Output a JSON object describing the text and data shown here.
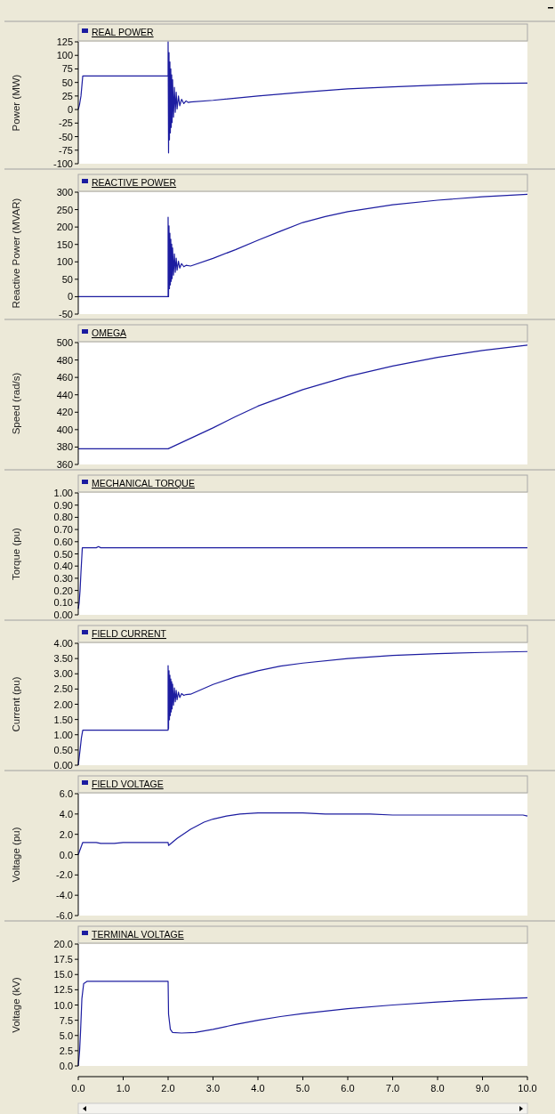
{
  "chart_data": [
    {
      "type": "line",
      "ylabel": "Power (MW)",
      "legend": "top",
      "tick_labels": "y",
      "xlim": [
        0,
        10
      ],
      "ylim": [
        -100,
        125
      ],
      "yticks": [
        -100,
        -75,
        -50,
        -25,
        0,
        25,
        50,
        75,
        100,
        125
      ],
      "series": [
        {
          "name": "REAL POWER",
          "color": "#1c1ca0",
          "x": [
            0,
            0.03,
            0.06,
            0.1,
            2.0,
            2.0,
            2.01,
            2.02,
            2.03,
            2.04,
            2.05,
            2.06,
            2.07,
            2.08,
            2.09,
            2.1,
            2.12,
            2.14,
            2.16,
            2.18,
            2.2,
            2.23,
            2.26,
            2.3,
            2.35,
            2.4,
            2.45,
            2.5,
            3,
            4,
            5,
            6,
            7,
            8,
            9,
            10
          ],
          "values": [
            0,
            10,
            25,
            62,
            62,
            125,
            -80,
            105,
            -56,
            88,
            -43,
            75,
            -33,
            64,
            -24,
            55,
            -14,
            41,
            -5,
            32,
            1,
            25,
            7,
            19,
            11,
            16,
            13,
            14,
            17,
            25,
            32,
            38,
            42,
            45,
            48,
            49
          ]
        }
      ]
    },
    {
      "type": "line",
      "ylabel": "Reactive Power (MVAR)",
      "legend": "top",
      "tick_labels": "y",
      "xlim": [
        0,
        10
      ],
      "ylim": [
        -50,
        300
      ],
      "yticks": [
        -50,
        0,
        50,
        100,
        150,
        200,
        250,
        300
      ],
      "series": [
        {
          "name": "REACTIVE POWER",
          "color": "#1c1ca0",
          "x": [
            0,
            2.0,
            2.0,
            2.01,
            2.02,
            2.03,
            2.04,
            2.05,
            2.06,
            2.07,
            2.08,
            2.09,
            2.1,
            2.12,
            2.14,
            2.16,
            2.18,
            2.2,
            2.23,
            2.26,
            2.3,
            2.35,
            2.4,
            2.5,
            3,
            3.5,
            4,
            4.5,
            5,
            5.5,
            6,
            7,
            8,
            9,
            10
          ],
          "values": [
            0,
            0,
            228,
            0,
            203,
            23,
            182,
            34,
            165,
            44,
            151,
            52,
            140,
            62,
            123,
            70,
            111,
            76,
            102,
            82,
            95,
            86,
            90,
            88,
            110,
            135,
            162,
            188,
            213,
            230,
            244,
            264,
            277,
            287,
            294
          ]
        }
      ]
    },
    {
      "type": "line",
      "ylabel": "Speed (rad/s)",
      "legend": "top",
      "tick_labels": "y",
      "xlim": [
        0,
        10
      ],
      "ylim": [
        360,
        500
      ],
      "yticks": [
        360,
        380,
        400,
        420,
        440,
        460,
        480,
        500
      ],
      "series": [
        {
          "name": "OMEGA",
          "color": "#1c1ca0",
          "x": [
            0,
            2,
            2.5,
            3,
            3.5,
            4,
            5,
            6,
            7,
            8,
            9,
            10
          ],
          "values": [
            378,
            378,
            390,
            402,
            415,
            427,
            446,
            461,
            473,
            483,
            491,
            497
          ]
        }
      ]
    },
    {
      "type": "line",
      "ylabel": "Torque (pu)",
      "legend": "top",
      "tick_labels": "y",
      "xlim": [
        0,
        10
      ],
      "ylim": [
        0,
        1
      ],
      "yticks": [
        {
          "value": 0,
          "label": "0.00"
        },
        {
          "value": 0.1,
          "label": "0.10"
        },
        {
          "value": 0.2,
          "label": "0.20"
        },
        {
          "value": 0.3,
          "label": "0.30"
        },
        {
          "value": 0.4,
          "label": "0.40"
        },
        {
          "value": 0.5,
          "label": "0.50"
        },
        {
          "value": 0.6,
          "label": "0.60"
        },
        {
          "value": 0.7,
          "label": "0.70"
        },
        {
          "value": 0.8,
          "label": "0.80"
        },
        {
          "value": 0.9,
          "label": "0.90"
        },
        {
          "value": 1,
          "label": "1.00"
        }
      ],
      "series": [
        {
          "name": "MECHANICAL TORQUE",
          "color": "#1c1ca0",
          "x": [
            0,
            0.02,
            0.04,
            0.06,
            0.09,
            0.4,
            0.45,
            0.5,
            10
          ],
          "values": [
            0.05,
            0.1,
            0.2,
            0.35,
            0.55,
            0.55,
            0.56,
            0.55,
            0.55
          ]
        }
      ]
    },
    {
      "type": "line",
      "ylabel": "Current (pu)",
      "legend": "top",
      "tick_labels": "y",
      "xlim": [
        0,
        10
      ],
      "ylim": [
        0,
        4
      ],
      "yticks": [
        {
          "value": 0,
          "label": "0.00"
        },
        {
          "value": 0.5,
          "label": "0.50"
        },
        {
          "value": 1,
          "label": "1.00"
        },
        {
          "value": 1.5,
          "label": "1.50"
        },
        {
          "value": 2,
          "label": "2.00"
        },
        {
          "value": 2.5,
          "label": "2.50"
        },
        {
          "value": 3,
          "label": "3.00"
        },
        {
          "value": 3.5,
          "label": "3.50"
        },
        {
          "value": 4,
          "label": "4.00"
        }
      ],
      "series": [
        {
          "name": "FIELD CURRENT",
          "color": "#1c1ca0",
          "x": [
            0,
            0.04,
            0.07,
            0.1,
            2.0,
            2.0,
            2.01,
            2.02,
            2.03,
            2.04,
            2.05,
            2.06,
            2.07,
            2.08,
            2.09,
            2.1,
            2.12,
            2.14,
            2.16,
            2.18,
            2.2,
            2.23,
            2.26,
            2.3,
            2.35,
            2.4,
            2.5,
            3,
            3.5,
            4,
            4.5,
            5,
            6,
            7,
            8,
            9,
            10
          ],
          "values": [
            0,
            0.5,
            0.9,
            1.15,
            1.15,
            3.27,
            1.2,
            3.1,
            1.49,
            2.95,
            1.63,
            2.83,
            1.75,
            2.74,
            1.85,
            2.66,
            1.97,
            2.54,
            2.08,
            2.46,
            2.15,
            2.4,
            2.22,
            2.35,
            2.29,
            2.32,
            2.33,
            2.65,
            2.9,
            3.1,
            3.25,
            3.35,
            3.5,
            3.6,
            3.66,
            3.7,
            3.73
          ]
        }
      ]
    },
    {
      "type": "line",
      "ylabel": "Voltage (pu)",
      "legend": "top",
      "tick_labels": "y",
      "xlim": [
        0,
        10
      ],
      "ylim": [
        -6,
        6
      ],
      "yticks": [
        {
          "value": -6,
          "label": "-6.0"
        },
        {
          "value": -4,
          "label": "-4.0"
        },
        {
          "value": -2,
          "label": "-2.0"
        },
        {
          "value": 0,
          "label": "0.0"
        },
        {
          "value": 2,
          "label": "2.0"
        },
        {
          "value": 4,
          "label": "4.0"
        },
        {
          "value": 6,
          "label": "6.0"
        }
      ],
      "series": [
        {
          "name": "FIELD VOLTAGE",
          "color": "#1c1ca0",
          "x": [
            0,
            0.1,
            0.4,
            0.5,
            0.8,
            1.0,
            2.0,
            2.01,
            2.2,
            2.5,
            2.8,
            3.0,
            3.3,
            3.6,
            4.0,
            5.0,
            5.5,
            6.5,
            7.0,
            9.9,
            10
          ],
          "values": [
            0,
            1.2,
            1.2,
            1.1,
            1.1,
            1.2,
            1.2,
            0.9,
            1.6,
            2.5,
            3.2,
            3.5,
            3.8,
            4.0,
            4.1,
            4.1,
            4.0,
            4.0,
            3.9,
            3.9,
            3.8
          ]
        }
      ]
    },
    {
      "type": "line",
      "ylabel": "Voltage (kV)",
      "legend": "top",
      "xlim": [
        0,
        10
      ],
      "xticks": [
        {
          "value": 0,
          "label": "0.0"
        },
        {
          "value": 1,
          "label": "1.0"
        },
        {
          "value": 2,
          "label": "2.0"
        },
        {
          "value": 3,
          "label": "3.0"
        },
        {
          "value": 4,
          "label": "4.0"
        },
        {
          "value": 5,
          "label": "5.0"
        },
        {
          "value": 6,
          "label": "6.0"
        },
        {
          "value": 7,
          "label": "7.0"
        },
        {
          "value": 8,
          "label": "8.0"
        },
        {
          "value": 9,
          "label": "9.0"
        },
        {
          "value": 10,
          "label": "10.0"
        }
      ],
      "ylim": [
        0,
        20
      ],
      "yticks": [
        {
          "value": 0,
          "label": "0.0"
        },
        {
          "value": 2.5,
          "label": "2.5"
        },
        {
          "value": 5,
          "label": "5.0"
        },
        {
          "value": 7.5,
          "label": "7.5"
        },
        {
          "value": 10,
          "label": "10.0"
        },
        {
          "value": 12.5,
          "label": "12.5"
        },
        {
          "value": 15,
          "label": "15.0"
        },
        {
          "value": 17.5,
          "label": "17.5"
        },
        {
          "value": 20,
          "label": "20.0"
        }
      ],
      "series": [
        {
          "name": "TERMINAL VOLTAGE",
          "color": "#1c1ca0",
          "x": [
            0,
            0.03,
            0.05,
            0.08,
            0.12,
            0.2,
            2.0,
            2.01,
            2.05,
            2.1,
            2.3,
            2.6,
            3.0,
            3.5,
            4.0,
            4.5,
            5.0,
            6.0,
            7.0,
            8.0,
            9.0,
            10.0
          ],
          "values": [
            0,
            2.5,
            5.5,
            11,
            13.5,
            13.9,
            13.9,
            8.5,
            6,
            5.5,
            5.4,
            5.5,
            6.0,
            6.8,
            7.5,
            8.1,
            8.6,
            9.4,
            10.0,
            10.5,
            10.9,
            11.2
          ]
        }
      ]
    }
  ]
}
